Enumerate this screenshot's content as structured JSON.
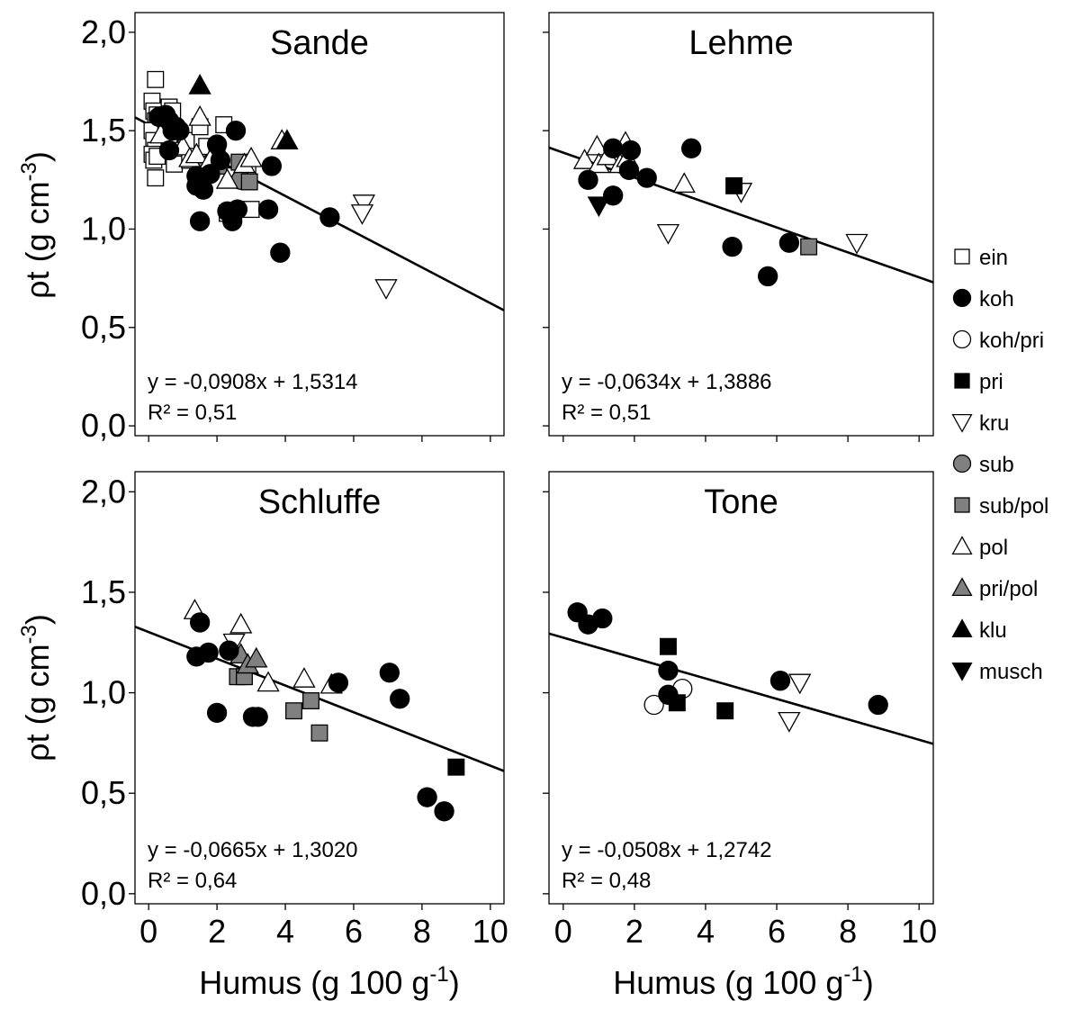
{
  "chart_data": [
    {
      "type": "scatter",
      "title": "Sande",
      "xlabel": "Humus (g 100 g-1)",
      "ylabel": "ρt (g cm-3)",
      "xlim": [
        -0.4,
        10.4
      ],
      "ylim": [
        -0.05,
        2.1
      ],
      "x_ticks": [
        "0",
        "2",
        "4",
        "6",
        "8",
        "10"
      ],
      "y_ticks": [
        "2,0",
        "1,5",
        "1,0",
        "0,5",
        "0,0"
      ],
      "equation": "y = -0,0908x + 1,5314",
      "r2": "R² = 0,51",
      "trendline": {
        "slope": -0.0908,
        "intercept": 1.5314
      },
      "series": [
        {
          "name": "ein",
          "points": [
            [
              0.1,
              1.65
            ],
            [
              0.2,
              1.76
            ],
            [
              0.15,
              1.6
            ],
            [
              0.2,
              1.55
            ],
            [
              0.25,
              1.58
            ],
            [
              0.1,
              1.5
            ],
            [
              0.15,
              1.45
            ],
            [
              0.2,
              1.4
            ],
            [
              0.1,
              1.38
            ],
            [
              0.15,
              1.35
            ],
            [
              0.25,
              1.37
            ],
            [
              0.2,
              1.26
            ],
            [
              0.5,
              1.55
            ],
            [
              0.6,
              1.62
            ],
            [
              0.7,
              1.6
            ],
            [
              0.8,
              1.5
            ],
            [
              0.6,
              1.45
            ],
            [
              0.9,
              1.4
            ],
            [
              1.1,
              1.45
            ],
            [
              0.75,
              1.33
            ],
            [
              1.5,
              1.52
            ],
            [
              1.7,
              1.42
            ],
            [
              2.0,
              1.38
            ],
            [
              2.2,
              1.53
            ],
            [
              1.2,
              1.35
            ],
            [
              2.5,
              1.27
            ],
            [
              2.3,
              1.08
            ],
            [
              2.9,
              1.28
            ],
            [
              3.0,
              1.1
            ]
          ]
        },
        {
          "name": "koh",
          "points": [
            [
              0.3,
              1.57
            ],
            [
              0.5,
              1.58
            ],
            [
              0.6,
              1.55
            ],
            [
              0.7,
              1.5
            ],
            [
              0.8,
              1.52
            ],
            [
              0.9,
              1.5
            ],
            [
              0.6,
              1.4
            ],
            [
              1.4,
              1.27
            ],
            [
              1.4,
              1.22
            ],
            [
              1.6,
              1.2
            ],
            [
              1.5,
              1.04
            ],
            [
              1.8,
              1.28
            ],
            [
              2.0,
              1.43
            ],
            [
              2.1,
              1.35
            ],
            [
              2.3,
              1.09
            ],
            [
              2.45,
              1.04
            ],
            [
              2.6,
              1.1
            ],
            [
              2.55,
              1.5
            ],
            [
              3.5,
              1.1
            ],
            [
              3.6,
              1.32
            ],
            [
              3.85,
              0.88
            ],
            [
              5.3,
              1.06
            ]
          ]
        },
        {
          "name": "sub/pol",
          "points": [
            [
              1.5,
              1.33
            ],
            [
              2.05,
              1.32
            ],
            [
              2.65,
              1.34
            ],
            [
              2.95,
              1.24
            ]
          ]
        },
        {
          "name": "sub",
          "points": [
            [
              2.7,
              1.25
            ]
          ]
        },
        {
          "name": "pol",
          "points": [
            [
              0.35,
              1.48
            ],
            [
              1.0,
              1.42
            ],
            [
              1.2,
              1.36
            ],
            [
              1.4,
              1.38
            ],
            [
              1.5,
              1.57
            ],
            [
              1.8,
              1.35
            ],
            [
              2.3,
              1.25
            ],
            [
              2.8,
              1.33
            ],
            [
              3.0,
              1.36
            ],
            [
              3.9,
              1.45
            ]
          ]
        },
        {
          "name": "kru",
          "points": [
            [
              6.3,
              1.13
            ],
            [
              6.25,
              1.08
            ],
            [
              6.95,
              0.7
            ]
          ]
        },
        {
          "name": "klu",
          "points": [
            [
              1.5,
              1.73
            ],
            [
              4.05,
              1.45
            ]
          ]
        }
      ]
    },
    {
      "type": "scatter",
      "title": "Lehme",
      "xlabel": "Humus (g 100 g-1)",
      "ylabel": "ρt (g cm-3)",
      "xlim": [
        -0.4,
        10.4
      ],
      "ylim": [
        -0.05,
        2.1
      ],
      "x_ticks": [
        "0",
        "2",
        "4",
        "6",
        "8",
        "10"
      ],
      "y_ticks": [
        "2,0",
        "1,5",
        "1,0",
        "0,5",
        "0,0"
      ],
      "equation": "y = -0,0634x + 1,3886",
      "r2": "R² = 0,51",
      "trendline": {
        "slope": -0.0634,
        "intercept": 1.3886
      },
      "series": [
        {
          "name": "koh",
          "points": [
            [
              0.7,
              1.25
            ],
            [
              1.4,
              1.41
            ],
            [
              1.4,
              1.17
            ],
            [
              1.9,
              1.4
            ],
            [
              1.85,
              1.3
            ],
            [
              2.35,
              1.26
            ],
            [
              3.6,
              1.41
            ],
            [
              4.75,
              0.91
            ],
            [
              5.75,
              0.76
            ],
            [
              6.35,
              0.93
            ]
          ]
        },
        {
          "name": "pri",
          "points": [
            [
              4.8,
              1.22
            ]
          ]
        },
        {
          "name": "sub/pol",
          "points": [
            [
              6.9,
              0.91
            ]
          ]
        },
        {
          "name": "kru",
          "points": [
            [
              2.95,
              0.98
            ],
            [
              5.0,
              1.19
            ],
            [
              8.25,
              0.93
            ]
          ]
        },
        {
          "name": "pol",
          "points": [
            [
              0.6,
              1.35
            ],
            [
              0.95,
              1.42
            ],
            [
              1.0,
              1.33
            ],
            [
              1.25,
              1.37
            ],
            [
              1.6,
              1.33
            ],
            [
              1.75,
              1.44
            ],
            [
              1.8,
              1.36
            ],
            [
              3.4,
              1.23
            ]
          ]
        },
        {
          "name": "musch",
          "points": [
            [
              1.0,
              1.12
            ]
          ]
        }
      ]
    },
    {
      "type": "scatter",
      "title": "Schluffe",
      "xlabel": "Humus (g 100 g-1)",
      "ylabel": "ρt (g cm-3)",
      "xlim": [
        -0.4,
        10.4
      ],
      "ylim": [
        -0.05,
        2.1
      ],
      "x_ticks": [
        "0",
        "2",
        "4",
        "6",
        "8",
        "10"
      ],
      "y_ticks": [
        "2,0",
        "1,5",
        "1,0",
        "0,5",
        "0,0"
      ],
      "equation": "y = -0,0665x + 1,3020",
      "r2": "R² = 0,64",
      "trendline": {
        "slope": -0.0665,
        "intercept": 1.302
      },
      "series": [
        {
          "name": "koh",
          "points": [
            [
              1.4,
              1.18
            ],
            [
              1.5,
              1.35
            ],
            [
              1.75,
              1.2
            ],
            [
              2.0,
              0.9
            ],
            [
              2.35,
              1.21
            ],
            [
              3.05,
              0.88
            ],
            [
              3.2,
              0.88
            ],
            [
              5.55,
              1.05
            ],
            [
              7.05,
              1.1
            ],
            [
              7.35,
              0.97
            ],
            [
              8.15,
              0.48
            ],
            [
              8.65,
              0.41
            ]
          ]
        },
        {
          "name": "pri",
          "points": [
            [
              9.0,
              0.63
            ]
          ]
        },
        {
          "name": "sub/pol",
          "points": [
            [
              2.6,
              1.08
            ],
            [
              2.8,
              1.08
            ],
            [
              4.25,
              0.91
            ],
            [
              4.75,
              0.96
            ],
            [
              5.0,
              0.8
            ]
          ]
        },
        {
          "name": "pol",
          "points": [
            [
              1.35,
              1.41
            ],
            [
              2.7,
              1.34
            ],
            [
              3.5,
              1.05
            ],
            [
              4.55,
              1.07
            ],
            [
              5.35,
              1.04
            ]
          ]
        },
        {
          "name": "kru",
          "points": [
            [
              2.5,
              1.25
            ]
          ]
        },
        {
          "name": "pri/pol",
          "points": [
            [
              2.7,
              1.19
            ],
            [
              2.9,
              1.14
            ],
            [
              3.15,
              1.17
            ]
          ]
        }
      ]
    },
    {
      "type": "scatter",
      "title": "Tone",
      "xlabel": "Humus (g 100 g-1)",
      "ylabel": "ρt (g cm-3)",
      "xlim": [
        -0.4,
        10.4
      ],
      "ylim": [
        -0.05,
        2.1
      ],
      "x_ticks": [
        "0",
        "2",
        "4",
        "6",
        "8",
        "10"
      ],
      "y_ticks": [
        "2,0",
        "1,5",
        "1,0",
        "0,5",
        "0,0"
      ],
      "equation": "y = -0,0508x + 1,2742",
      "r2": "R² = 0,48",
      "trendline": {
        "slope": -0.0508,
        "intercept": 1.2742
      },
      "series": [
        {
          "name": "koh",
          "points": [
            [
              0.4,
              1.4
            ],
            [
              0.7,
              1.34
            ],
            [
              1.1,
              1.37
            ],
            [
              2.95,
              1.11
            ],
            [
              2.95,
              0.99
            ],
            [
              6.1,
              1.06
            ],
            [
              8.85,
              0.94
            ]
          ]
        },
        {
          "name": "pri",
          "points": [
            [
              2.95,
              1.23
            ],
            [
              3.2,
              0.95
            ],
            [
              4.55,
              0.91
            ]
          ]
        },
        {
          "name": "koh/pri",
          "points": [
            [
              2.55,
              0.94
            ],
            [
              3.35,
              1.02
            ]
          ]
        },
        {
          "name": "kru",
          "points": [
            [
              6.35,
              0.86
            ],
            [
              6.65,
              1.05
            ]
          ]
        }
      ]
    }
  ],
  "legend": [
    {
      "name": "ein",
      "marker": "square",
      "fill": "#ffffff"
    },
    {
      "name": "koh",
      "marker": "circle",
      "fill": "#000000"
    },
    {
      "name": "koh/pri",
      "marker": "circle",
      "fill": "#ffffff"
    },
    {
      "name": "pri",
      "marker": "square",
      "fill": "#000000"
    },
    {
      "name": "kru",
      "marker": "triangle-down",
      "fill": "#ffffff"
    },
    {
      "name": "sub",
      "marker": "circle",
      "fill": "#808080"
    },
    {
      "name": "sub/pol",
      "marker": "square",
      "fill": "#808080"
    },
    {
      "name": "pol",
      "marker": "triangle-up",
      "fill": "#ffffff"
    },
    {
      "name": "pri/pol",
      "marker": "triangle-up",
      "fill": "#808080"
    },
    {
      "name": "klu",
      "marker": "triangle-up",
      "fill": "#000000"
    },
    {
      "name": "musch",
      "marker": "triangle-down",
      "fill": "#000000"
    }
  ]
}
